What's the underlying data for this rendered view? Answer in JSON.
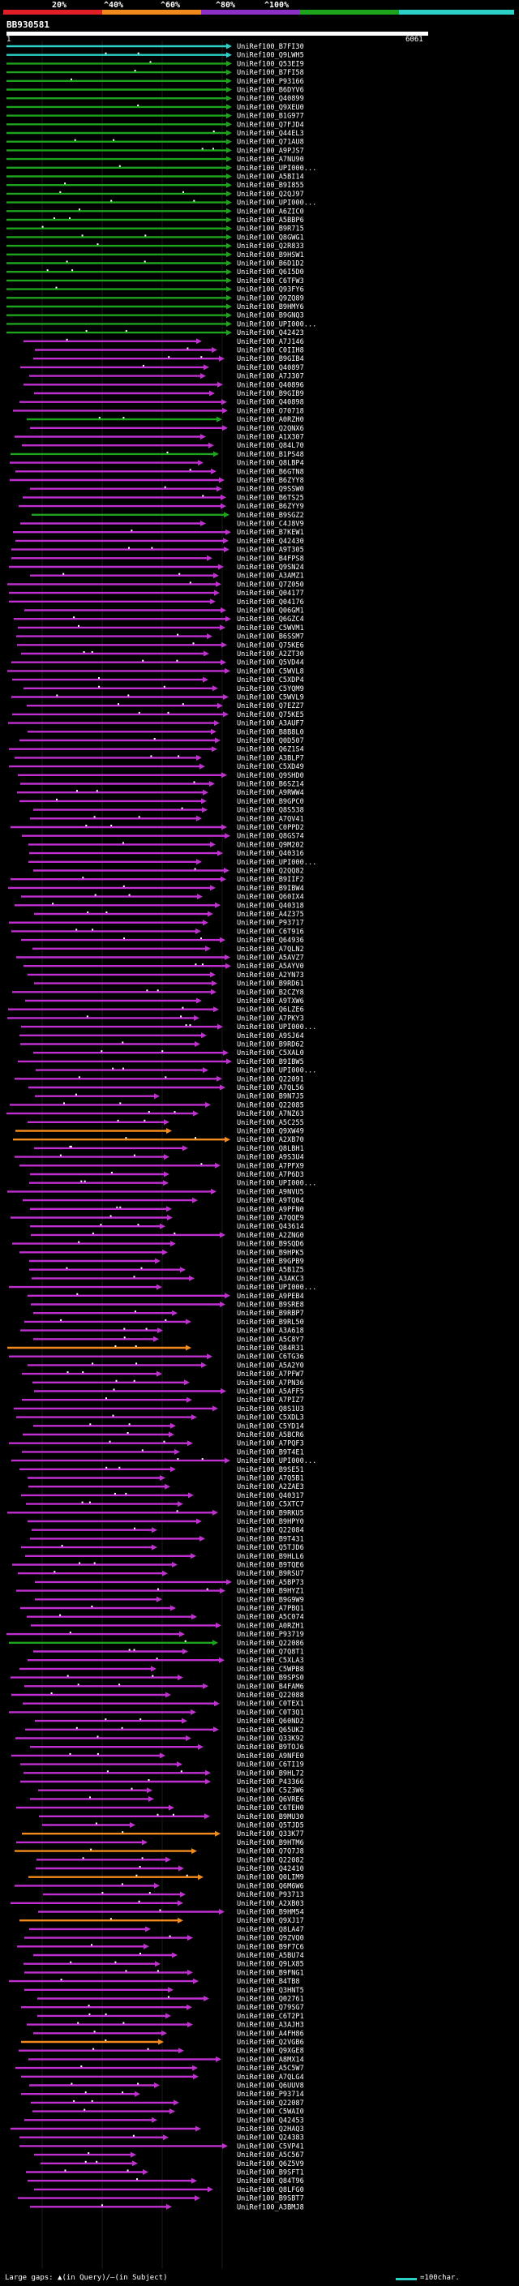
{
  "legend": {
    "labels": [
      "20%",
      "^40%",
      "^60%",
      "^80%",
      "^100%"
    ],
    "colors": [
      "#e01f26",
      "#f28a1c",
      "#8c30c8",
      "#1ea41c",
      "#2bd1c6"
    ]
  },
  "title": "BB930581",
  "query": {
    "start": "1",
    "end": "6061"
  },
  "footer": {
    "note": "Large gaps: ▲(in Query)/—(in Subject)",
    "scale": "=100char."
  },
  "hits": [
    {
      "label": "UniRef100_B7FI30",
      "color": "#2bd1c6"
    },
    {
      "label": "UniRef100_Q9LWH5",
      "color": "#2bd1c6"
    },
    {
      "label": "UniRef100_Q53EI9",
      "color": "#1ea41c"
    },
    {
      "label": "UniRef100_B7FI58",
      "color": "#1ea41c"
    },
    {
      "label": "UniRef100_P93166",
      "color": "#1ea41c"
    },
    {
      "label": "UniRef100_B6DYV6",
      "color": "#1ea41c"
    },
    {
      "label": "UniRef100_Q40899",
      "color": "#1ea41c"
    },
    {
      "label": "UniRef100_Q9XEU0",
      "color": "#1ea41c"
    },
    {
      "label": "UniRef100_B1G977",
      "color": "#1ea41c"
    },
    {
      "label": "UniRef100_Q7FJD4",
      "color": "#1ea41c"
    },
    {
      "label": "UniRef100_Q44EL3",
      "color": "#1ea41c"
    },
    {
      "label": "UniRef100_Q71AU8",
      "color": "#1ea41c"
    },
    {
      "label": "UniRef100_A9PJS7",
      "color": "#1ea41c"
    },
    {
      "label": "UniRef100_A7NU90",
      "color": "#1ea41c"
    },
    {
      "label": "UniRef100_UPI000...",
      "color": "#1ea41c"
    },
    {
      "label": "UniRef100_A5BI14",
      "color": "#1ea41c"
    },
    {
      "label": "UniRef100_B9I855",
      "color": "#1ea41c"
    },
    {
      "label": "UniRef100_Q2QJ97",
      "color": "#1ea41c"
    },
    {
      "label": "UniRef100_UPI000...",
      "color": "#1ea41c"
    },
    {
      "label": "UniRef100_A6ZIC0",
      "color": "#1ea41c"
    },
    {
      "label": "UniRef100_A5BBP6",
      "color": "#1ea41c"
    },
    {
      "label": "UniRef100_B9R715",
      "color": "#1ea41c"
    },
    {
      "label": "UniRef100_Q8GWG1",
      "color": "#1ea41c"
    },
    {
      "label": "UniRef100_Q2R833",
      "color": "#1ea41c"
    },
    {
      "label": "UniRef100_B9HSW1",
      "color": "#1ea41c"
    },
    {
      "label": "UniRef100_B6D1D2",
      "color": "#1ea41c"
    },
    {
      "label": "UniRef100_Q6I5D0",
      "color": "#1ea41c"
    },
    {
      "label": "UniRef100_C6TFW3",
      "color": "#1ea41c"
    },
    {
      "label": "UniRef100_Q93FY6",
      "color": "#1ea41c"
    },
    {
      "label": "UniRef100_Q9ZQ89",
      "color": "#1ea41c"
    },
    {
      "label": "UniRef100_B9HMY6",
      "color": "#1ea41c"
    },
    {
      "label": "UniRef100_B9GNQ3",
      "color": "#1ea41c"
    },
    {
      "label": "UniRef100_UPI000...",
      "color": "#1ea41c"
    },
    {
      "label": "UniRef100_Q42423",
      "color": "#1ea41c"
    },
    {
      "label": "UniRef100_A7J146",
      "color": "#c030d0"
    },
    {
      "label": "UniRef100_C0IIH8",
      "color": "#c030d0"
    },
    {
      "label": "UniRef100_B9GIB4",
      "color": "#c030d0"
    },
    {
      "label": "UniRef100_Q40897",
      "color": "#c030d0"
    },
    {
      "label": "UniRef100_A7J307",
      "color": "#c030d0"
    },
    {
      "label": "UniRef100_Q40896",
      "color": "#c030d0"
    },
    {
      "label": "UniRef100_B9GIB9",
      "color": "#c030d0"
    },
    {
      "label": "UniRef100_Q40898",
      "color": "#c030d0"
    },
    {
      "label": "UniRef100_O70718",
      "color": "#c030d0"
    },
    {
      "label": "UniRef100_A0RZH0",
      "color": "#1ea41c"
    },
    {
      "label": "UniRef100_Q2QNX6",
      "color": "#c030d0"
    },
    {
      "label": "UniRef100_A1X307",
      "color": "#c030d0"
    },
    {
      "label": "UniRef100_Q84L70",
      "color": "#c030d0"
    },
    {
      "label": "UniRef100_B1PS48",
      "color": "#1ea41c"
    },
    {
      "label": "UniRef100_Q8LBP4",
      "color": "#c030d0"
    },
    {
      "label": "UniRef100_B6GTN8",
      "color": "#c030d0"
    },
    {
      "label": "UniRef100_B6ZYY8",
      "color": "#c030d0"
    },
    {
      "label": "UniRef100_Q9SSW0",
      "color": "#c030d0"
    },
    {
      "label": "UniRef100_B6TS25",
      "color": "#c030d0"
    },
    {
      "label": "UniRef100_B6ZYY9",
      "color": "#c030d0"
    },
    {
      "label": "UniRef100_B9SGZ2",
      "color": "#1ea41c"
    },
    {
      "label": "UniRef100_C4J8V9",
      "color": "#c030d0"
    },
    {
      "label": "UniRef100_B7KEW1",
      "color": "#c030d0"
    },
    {
      "label": "UniRef100_Q42430",
      "color": "#c030d0"
    },
    {
      "label": "UniRef100_A9T305",
      "color": "#c030d0"
    },
    {
      "label": "UniRef100_B4FPS8",
      "color": "#c030d0"
    },
    {
      "label": "UniRef100_Q9SN24",
      "color": "#c030d0"
    },
    {
      "label": "UniRef100_A3AMZ1",
      "color": "#c030d0"
    },
    {
      "label": "UniRef100_Q7Z050",
      "color": "#c030d0"
    },
    {
      "label": "UniRef100_Q04177",
      "color": "#c030d0"
    },
    {
      "label": "UniRef100_Q04176",
      "color": "#c030d0"
    },
    {
      "label": "UniRef100_Q06GM1",
      "color": "#c030d0"
    },
    {
      "label": "UniRef100_Q6GZC4",
      "color": "#c030d0"
    },
    {
      "label": "UniRef100_C5WVM1",
      "color": "#c030d0"
    },
    {
      "label": "UniRef100_B6SSM7",
      "color": "#c030d0"
    },
    {
      "label": "UniRef100_Q75KE6",
      "color": "#c030d0"
    },
    {
      "label": "UniRef100_A2ZT30",
      "color": "#c030d0"
    },
    {
      "label": "UniRef100_Q5VD44",
      "color": "#c030d0"
    },
    {
      "label": "UniRef100_C5WVL8",
      "color": "#c030d0"
    },
    {
      "label": "UniRef100_C5XDP4",
      "color": "#c030d0"
    },
    {
      "label": "UniRef100_C5YQM9",
      "color": "#c030d0"
    },
    {
      "label": "UniRef100_C5WVL9",
      "color": "#c030d0"
    },
    {
      "label": "UniRef100_Q7EZZ7",
      "color": "#c030d0"
    },
    {
      "label": "UniRef100_Q75KE5",
      "color": "#c030d0"
    },
    {
      "label": "UniRef100_A3AUF7",
      "color": "#c030d0"
    },
    {
      "label": "UniRef100_B8B8L0",
      "color": "#c030d0"
    },
    {
      "label": "UniRef100_Q0D507",
      "color": "#c030d0"
    },
    {
      "label": "UniRef100_Q6Z1S4",
      "color": "#c030d0"
    },
    {
      "label": "UniRef100_A3BLP7",
      "color": "#c030d0"
    },
    {
      "label": "UniRef100_C5XD49",
      "color": "#c030d0"
    },
    {
      "label": "UniRef100_Q9SHD0",
      "color": "#c030d0"
    },
    {
      "label": "UniRef100_B6SZ14",
      "color": "#c030d0"
    },
    {
      "label": "UniRef100_A9RWW4",
      "color": "#c030d0"
    },
    {
      "label": "UniRef100_B9GPC0",
      "color": "#c030d0"
    },
    {
      "label": "UniRef100_Q8S538",
      "color": "#c030d0"
    },
    {
      "label": "UniRef100_A7QV41",
      "color": "#c030d0"
    },
    {
      "label": "UniRef100_C0PPD2",
      "color": "#c030d0"
    },
    {
      "label": "UniRef100_Q8GS74",
      "color": "#c030d0"
    },
    {
      "label": "UniRef100_Q9M202",
      "color": "#c030d0"
    },
    {
      "label": "UniRef100_Q40316",
      "color": "#c030d0"
    },
    {
      "label": "UniRef100_UPI000...",
      "color": "#c030d0"
    },
    {
      "label": "UniRef100_Q2QQ82",
      "color": "#c030d0"
    },
    {
      "label": "UniRef100_B9IIF2",
      "color": "#c030d0"
    },
    {
      "label": "UniRef100_B9IBW4",
      "color": "#c030d0"
    },
    {
      "label": "UniRef100_Q60IX4",
      "color": "#c030d0"
    },
    {
      "label": "UniRef100_Q40318",
      "color": "#c030d0"
    },
    {
      "label": "UniRef100_A4Z375",
      "color": "#c030d0"
    },
    {
      "label": "UniRef100_P93717",
      "color": "#c030d0"
    },
    {
      "label": "UniRef100_C6T916",
      "color": "#c030d0"
    },
    {
      "label": "UniRef100_Q64936",
      "color": "#c030d0"
    },
    {
      "label": "UniRef100_A7QLN2",
      "color": "#c030d0"
    },
    {
      "label": "UniRef100_A5AVZ7",
      "color": "#c030d0"
    },
    {
      "label": "UniRef100_A5AYV0",
      "color": "#c030d0"
    },
    {
      "label": "UniRef100_A2YN73",
      "color": "#c030d0"
    },
    {
      "label": "UniRef100_B9RD61",
      "color": "#c030d0"
    },
    {
      "label": "UniRef100_B2CZY8",
      "color": "#c030d0"
    },
    {
      "label": "UniRef100_A9TXW6",
      "color": "#c030d0"
    },
    {
      "label": "UniRef100_Q6LZE6",
      "color": "#c030d0"
    },
    {
      "label": "UniRef100_A7PKY3",
      "color": "#c030d0"
    },
    {
      "label": "UniRef100_UPI000...",
      "color": "#c030d0"
    },
    {
      "label": "UniRef100_A9SJ64",
      "color": "#c030d0"
    },
    {
      "label": "UniRef100_B9RD62",
      "color": "#c030d0"
    },
    {
      "label": "UniRef100_C5XAL0",
      "color": "#c030d0"
    },
    {
      "label": "UniRef100_B9IBW5",
      "color": "#c030d0"
    },
    {
      "label": "UniRef100_UPI000...",
      "color": "#c030d0"
    },
    {
      "label": "UniRef100_Q22091",
      "color": "#c030d0"
    },
    {
      "label": "UniRef100_A7QL56",
      "color": "#c030d0"
    },
    {
      "label": "UniRef100_B9N7J5",
      "color": "#c030d0"
    },
    {
      "label": "UniRef100_Q22085",
      "color": "#c030d0"
    },
    {
      "label": "UniRef100_A7NZ63",
      "color": "#c030d0"
    },
    {
      "label": "UniRef100_A5C255",
      "color": "#c030d0"
    },
    {
      "label": "UniRef100_Q9XW49",
      "color": "#f28a1c"
    },
    {
      "label": "UniRef100_A2XB70",
      "color": "#f28a1c"
    },
    {
      "label": "UniRef100_Q8LBH1",
      "color": "#c030d0"
    },
    {
      "label": "UniRef100_A9S3U4",
      "color": "#c030d0"
    },
    {
      "label": "UniRef100_A7PFX9",
      "color": "#c030d0"
    },
    {
      "label": "UniRef100_A7P6D3",
      "color": "#c030d0"
    },
    {
      "label": "UniRef100_UPI000...",
      "color": "#c030d0"
    },
    {
      "label": "UniRef100_A9NVU5",
      "color": "#c030d0"
    },
    {
      "label": "UniRef100_A9TQ04",
      "color": "#c030d0"
    },
    {
      "label": "UniRef100_A9PFN0",
      "color": "#c030d0"
    },
    {
      "label": "UniRef100_A7QQE9",
      "color": "#c030d0"
    },
    {
      "label": "UniRef100_Q43614",
      "color": "#c030d0"
    },
    {
      "label": "UniRef100_A2ZNG0",
      "color": "#c030d0"
    },
    {
      "label": "UniRef100_B9SQD6",
      "color": "#c030d0"
    },
    {
      "label": "UniRef100_B9HPK5",
      "color": "#c030d0"
    },
    {
      "label": "UniRef100_B9GPB9",
      "color": "#c030d0"
    },
    {
      "label": "UniRef100_A5B1Z5",
      "color": "#c030d0"
    },
    {
      "label": "UniRef100_A3AKC3",
      "color": "#c030d0"
    },
    {
      "label": "UniRef100_UPI000...",
      "color": "#c030d0"
    },
    {
      "label": "UniRef100_A9PEB4",
      "color": "#c030d0"
    },
    {
      "label": "UniRef100_B9SRE8",
      "color": "#c030d0"
    },
    {
      "label": "UniRef100_B9RBP7",
      "color": "#c030d0"
    },
    {
      "label": "UniRef100_B9RL50",
      "color": "#c030d0"
    },
    {
      "label": "UniRef100_A3A618",
      "color": "#c030d0"
    },
    {
      "label": "UniRef100_A5C8Y7",
      "color": "#c030d0"
    },
    {
      "label": "UniRef100_Q84R31",
      "color": "#f28a1c"
    },
    {
      "label": "UniRef100_C6TG36",
      "color": "#c030d0"
    },
    {
      "label": "UniRef100_A5A2Y0",
      "color": "#c030d0"
    },
    {
      "label": "UniRef100_A7PFW7",
      "color": "#c030d0"
    },
    {
      "label": "UniRef100_A7PN36",
      "color": "#c030d0"
    },
    {
      "label": "UniRef100_A5AFF5",
      "color": "#c030d0"
    },
    {
      "label": "UniRef100_A7PIZ7",
      "color": "#c030d0"
    },
    {
      "label": "UniRef100_Q8S1U3",
      "color": "#c030d0"
    },
    {
      "label": "UniRef100_C5XDL3",
      "color": "#c030d0"
    },
    {
      "label": "UniRef100_C5YD14",
      "color": "#c030d0"
    },
    {
      "label": "UniRef100_A5BCR6",
      "color": "#c030d0"
    },
    {
      "label": "UniRef100_A7PQF3",
      "color": "#c030d0"
    },
    {
      "label": "UniRef100_B9T4E1",
      "color": "#c030d0"
    },
    {
      "label": "UniRef100_UPI000...",
      "color": "#c030d0"
    },
    {
      "label": "UniRef100_B9SE51",
      "color": "#c030d0"
    },
    {
      "label": "UniRef100_A7Q5B1",
      "color": "#c030d0"
    },
    {
      "label": "UniRef100_A2ZAE3",
      "color": "#c030d0"
    },
    {
      "label": "UniRef100_Q40317",
      "color": "#c030d0"
    },
    {
      "label": "UniRef100_C5XTC7",
      "color": "#c030d0"
    },
    {
      "label": "UniRef100_B9RKU5",
      "color": "#c030d0"
    },
    {
      "label": "UniRef100_B9HPY0",
      "color": "#c030d0"
    },
    {
      "label": "UniRef100_Q22084",
      "color": "#c030d0"
    },
    {
      "label": "UniRef100_B9T431",
      "color": "#c030d0"
    },
    {
      "label": "UniRef100_Q5TJD6",
      "color": "#c030d0"
    },
    {
      "label": "UniRef100_B9HLL6",
      "color": "#c030d0"
    },
    {
      "label": "UniRef100_B9TQE6",
      "color": "#c030d0"
    },
    {
      "label": "UniRef100_B9RSU7",
      "color": "#c030d0"
    },
    {
      "label": "UniRef100_A5BP73",
      "color": "#c030d0"
    },
    {
      "label": "UniRef100_B9HYZ1",
      "color": "#c030d0"
    },
    {
      "label": "UniRef100_B9G9W9",
      "color": "#c030d0"
    },
    {
      "label": "UniRef100_A7PBQ1",
      "color": "#c030d0"
    },
    {
      "label": "UniRef100_A5C074",
      "color": "#c030d0"
    },
    {
      "label": "UniRef100_A0RZH1",
      "color": "#c030d0"
    },
    {
      "label": "UniRef100_P93719",
      "color": "#c030d0"
    },
    {
      "label": "UniRef100_Q22086",
      "color": "#1ea41c"
    },
    {
      "label": "UniRef100_Q7Q8T1",
      "color": "#c030d0"
    },
    {
      "label": "UniRef100_C5XLA3",
      "color": "#c030d0"
    },
    {
      "label": "UniRef100_C5WPB8",
      "color": "#c030d0"
    },
    {
      "label": "UniRef100_B9SPS0",
      "color": "#c030d0"
    },
    {
      "label": "UniRef100_B4FAM6",
      "color": "#c030d0"
    },
    {
      "label": "UniRef100_Q22088",
      "color": "#c030d0"
    },
    {
      "label": "UniRef100_C0TEX1",
      "color": "#c030d0"
    },
    {
      "label": "UniRef100_C0T3Q1",
      "color": "#c030d0"
    },
    {
      "label": "UniRef100_Q60ND2",
      "color": "#c030d0"
    },
    {
      "label": "UniRef100_Q65UK2",
      "color": "#c030d0"
    },
    {
      "label": "UniRef100_Q33K92",
      "color": "#c030d0"
    },
    {
      "label": "UniRef100_B9TOJ6",
      "color": "#c030d0"
    },
    {
      "label": "UniRef100_A9NFE0",
      "color": "#c030d0"
    },
    {
      "label": "UniRef100_C6TI19",
      "color": "#c030d0"
    },
    {
      "label": "UniRef100_B9HL72",
      "color": "#c030d0"
    },
    {
      "label": "UniRef100_P43366",
      "color": "#c030d0"
    },
    {
      "label": "UniRef100_C5Z3W6",
      "color": "#c030d0"
    },
    {
      "label": "UniRef100_Q6VRE6",
      "color": "#c030d0"
    },
    {
      "label": "UniRef100_C6TEH0",
      "color": "#c030d0"
    },
    {
      "label": "UniRef100_B9MU30",
      "color": "#c030d0"
    },
    {
      "label": "UniRef100_Q5TJD5",
      "color": "#c030d0"
    },
    {
      "label": "UniRef100_Q33K77",
      "color": "#f28a1c"
    },
    {
      "label": "UniRef100_B9HTM6",
      "color": "#c030d0"
    },
    {
      "label": "UniRef100_Q7Q7J8",
      "color": "#f28a1c"
    },
    {
      "label": "UniRef100_Q22082",
      "color": "#c030d0"
    },
    {
      "label": "UniRef100_Q42410",
      "color": "#c030d0"
    },
    {
      "label": "UniRef100_Q0LIM9",
      "color": "#f28a1c"
    },
    {
      "label": "UniRef100_Q6M6W6",
      "color": "#c030d0"
    },
    {
      "label": "UniRef100_P93713",
      "color": "#c030d0"
    },
    {
      "label": "UniRef100_A2XB03",
      "color": "#c030d0"
    },
    {
      "label": "UniRef100_B9HM54",
      "color": "#c030d0"
    },
    {
      "label": "UniRef100_Q9XJ17",
      "color": "#f28a1c"
    },
    {
      "label": "UniRef100_Q8LA47",
      "color": "#c030d0"
    },
    {
      "label": "UniRef100_Q9ZVQ0",
      "color": "#c030d0"
    },
    {
      "label": "UniRef100_B9F7C6",
      "color": "#c030d0"
    },
    {
      "label": "UniRef100_A5BU74",
      "color": "#c030d0"
    },
    {
      "label": "UniRef100_Q9LX85",
      "color": "#c030d0"
    },
    {
      "label": "UniRef100_B9FNG1",
      "color": "#c030d0"
    },
    {
      "label": "UniRef100_B4TB8",
      "color": "#c030d0"
    },
    {
      "label": "UniRef100_Q3HNT5",
      "color": "#c030d0"
    },
    {
      "label": "UniRef100_Q02761",
      "color": "#c030d0"
    },
    {
      "label": "UniRef100_Q79SG7",
      "color": "#c030d0"
    },
    {
      "label": "UniRef100_C6T2P1",
      "color": "#c030d0"
    },
    {
      "label": "UniRef100_A3AJH3",
      "color": "#c030d0"
    },
    {
      "label": "UniRef100_A4FH86",
      "color": "#c030d0"
    },
    {
      "label": "UniRef100_Q2VGB6",
      "color": "#f28a1c"
    },
    {
      "label": "UniRef100_Q9XGE8",
      "color": "#c030d0"
    },
    {
      "label": "UniRef100_A8MX14",
      "color": "#c030d0"
    },
    {
      "label": "UniRef100_A5C5W7",
      "color": "#c030d0"
    },
    {
      "label": "UniRef100_A7QLG4",
      "color": "#c030d0"
    },
    {
      "label": "UniRef100_Q6UUV8",
      "color": "#c030d0"
    },
    {
      "label": "UniRef100_P93714",
      "color": "#c030d0"
    },
    {
      "label": "UniRef100_Q22087",
      "color": "#c030d0"
    },
    {
      "label": "UniRef100_C5WAI0",
      "color": "#c030d0"
    },
    {
      "label": "UniRef100_Q42453",
      "color": "#c030d0"
    },
    {
      "label": "UniRef100_Q2HAQ3",
      "color": "#c030d0"
    },
    {
      "label": "UniRef100_Q24383",
      "color": "#c030d0"
    },
    {
      "label": "UniRef100_C5VP41",
      "color": "#c030d0"
    },
    {
      "label": "UniRef100_A5C567",
      "color": "#c030d0"
    },
    {
      "label": "UniRef100_Q6Z5V9",
      "color": "#c030d0"
    },
    {
      "label": "UniRef100_B9SFT1",
      "color": "#c030d0"
    },
    {
      "label": "UniRef100_Q84T96",
      "color": "#c030d0"
    },
    {
      "label": "UniRef100_Q8LFG0",
      "color": "#c030d0"
    },
    {
      "label": "UniRef100_B9SBT7",
      "color": "#c030d0"
    },
    {
      "label": "UniRef100_A3BMJ8",
      "color": "#c030d0"
    }
  ]
}
